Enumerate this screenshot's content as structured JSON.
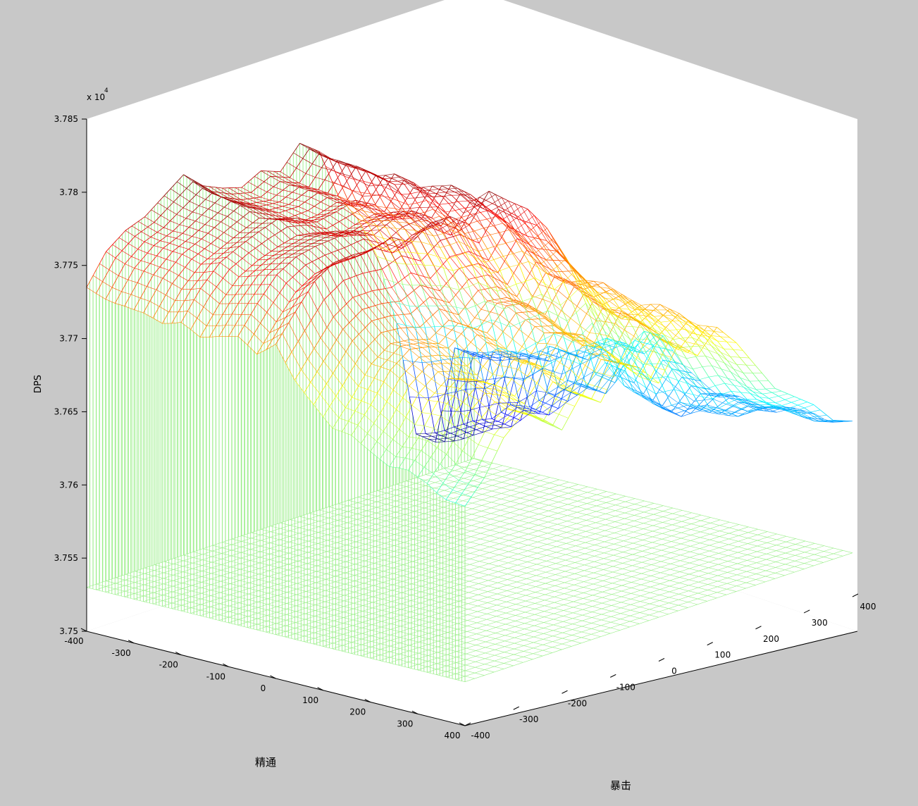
{
  "chart_data": {
    "type": "surface3d",
    "title": "",
    "xlabel": "精通",
    "ylabel": "暴击",
    "zlabel": "DPS",
    "z_exponent_label": "x 10",
    "z_exponent_power": "4",
    "xlim": [
      -400,
      400
    ],
    "ylim": [
      -400,
      400
    ],
    "zlim": [
      37500,
      37850
    ],
    "x_ticks": [
      "-400",
      "-300",
      "-200",
      "-100",
      "0",
      "100",
      "200",
      "300",
      "400"
    ],
    "y_ticks": [
      "-400",
      "-300",
      "-200",
      "-100",
      "0",
      "100",
      "200",
      "300",
      "400"
    ],
    "z_ticks": [
      "3.75",
      "3.755",
      "3.76",
      "3.765",
      "3.77",
      "3.775",
      "3.78",
      "3.785"
    ],
    "colormap": "jet",
    "curtain_color": "#99ee88",
    "back_edge_near_x": [
      {
        "x": -400,
        "z": 37682
      },
      {
        "x": -360,
        "z": 37690
      },
      {
        "x": -320,
        "z": 37718
      },
      {
        "x": -280,
        "z": 37728
      },
      {
        "x": -240,
        "z": 37722
      },
      {
        "x": -200,
        "z": 37745
      },
      {
        "x": -160,
        "z": 37730
      },
      {
        "x": -120,
        "z": 37745
      },
      {
        "x": -80,
        "z": 37755
      },
      {
        "x": -40,
        "z": 37740
      },
      {
        "x": 0,
        "z": 37760
      },
      {
        "x": 40,
        "z": 37735
      },
      {
        "x": 80,
        "z": 37720
      },
      {
        "x": 120,
        "z": 37702
      },
      {
        "x": 160,
        "z": 37710
      },
      {
        "x": 200,
        "z": 37700
      },
      {
        "x": 240,
        "z": 37688
      },
      {
        "x": 280,
        "z": 37712
      },
      {
        "x": 320,
        "z": 37705
      },
      {
        "x": 360,
        "z": 37650
      },
      {
        "x": 400,
        "z": 37650
      }
    ],
    "back_edge_near_y": [
      {
        "y": -400,
        "z": 37650
      },
      {
        "y": -360,
        "z": 37665
      },
      {
        "y": -320,
        "z": 37688
      },
      {
        "y": -280,
        "z": 37700
      },
      {
        "y": -240,
        "z": 37692
      },
      {
        "y": -200,
        "z": 37680
      },
      {
        "y": -160,
        "z": 37700
      },
      {
        "y": -120,
        "z": 37690
      },
      {
        "y": -80,
        "z": 37712
      },
      {
        "y": -40,
        "z": 37705
      },
      {
        "y": 0,
        "z": 37690
      },
      {
        "y": 40,
        "z": 37712
      },
      {
        "y": 80,
        "z": 37700
      },
      {
        "y": 120,
        "z": 37715
      },
      {
        "y": 160,
        "z": 37700
      },
      {
        "y": 200,
        "z": 37680
      },
      {
        "y": 240,
        "z": 37660
      },
      {
        "y": 280,
        "z": 37650
      },
      {
        "y": 320,
        "z": 37640
      },
      {
        "y": 360,
        "z": 37625
      },
      {
        "y": 400,
        "z": 37620
      }
    ],
    "front_edge_near_y": [
      {
        "y": -400,
        "z": 37735
      },
      {
        "y": -360,
        "z": 37755
      },
      {
        "y": -320,
        "z": 37765
      },
      {
        "y": -280,
        "z": 37770
      },
      {
        "y": -240,
        "z": 37780
      },
      {
        "y": -200,
        "z": 37790
      },
      {
        "y": -160,
        "z": 37778
      },
      {
        "y": -120,
        "z": 37772
      },
      {
        "y": -80,
        "z": 37768
      },
      {
        "y": -40,
        "z": 37775
      },
      {
        "y": 0,
        "z": 37770
      },
      {
        "y": 40,
        "z": 37785
      },
      {
        "y": 80,
        "z": 37775
      },
      {
        "y": 120,
        "z": 37740
      },
      {
        "y": 160,
        "z": 37720
      },
      {
        "y": 200,
        "z": 37690
      },
      {
        "y": 240,
        "z": 37640
      },
      {
        "y": 280,
        "z": 37560
      },
      {
        "y": 320,
        "z": 37550
      },
      {
        "y": 360,
        "z": 37610
      },
      {
        "y": 400,
        "z": 37600
      }
    ]
  }
}
